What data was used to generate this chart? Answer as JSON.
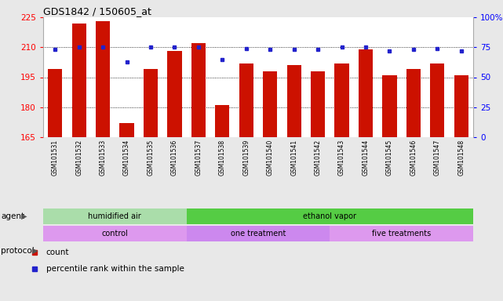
{
  "title": "GDS1842 / 150605_at",
  "samples": [
    "GSM101531",
    "GSM101532",
    "GSM101533",
    "GSM101534",
    "GSM101535",
    "GSM101536",
    "GSM101537",
    "GSM101538",
    "GSM101539",
    "GSM101540",
    "GSM101541",
    "GSM101542",
    "GSM101543",
    "GSM101544",
    "GSM101545",
    "GSM101546",
    "GSM101547",
    "GSM101548"
  ],
  "bar_values": [
    199,
    222,
    223,
    172,
    199,
    208,
    212,
    181,
    202,
    198,
    201,
    198,
    202,
    209,
    196,
    199,
    202,
    196
  ],
  "dot_values": [
    73,
    75,
    75,
    63,
    75,
    75,
    75,
    65,
    74,
    73,
    73,
    73,
    75,
    75,
    72,
    73,
    74,
    72
  ],
  "ylim_left": [
    165,
    225
  ],
  "ylim_right": [
    0,
    100
  ],
  "yticks_left": [
    165,
    180,
    195,
    210,
    225
  ],
  "yticks_right": [
    0,
    25,
    50,
    75,
    100
  ],
  "bar_color": "#CC1100",
  "dot_color": "#2222CC",
  "background_color": "#e8e8e8",
  "plot_bg_color": "#ffffff",
  "agent_labels": [
    {
      "text": "humidified air",
      "start": 0,
      "end": 5,
      "color": "#aaddaa"
    },
    {
      "text": "ethanol vapor",
      "start": 6,
      "end": 17,
      "color": "#55cc44"
    }
  ],
  "protocol_labels": [
    {
      "text": "control",
      "start": 0,
      "end": 5,
      "color": "#dd99ee"
    },
    {
      "text": "one treatment",
      "start": 6,
      "end": 11,
      "color": "#cc88ee"
    },
    {
      "text": "five treatments",
      "start": 12,
      "end": 17,
      "color": "#dd99ee"
    }
  ],
  "legend_items": [
    {
      "label": "count",
      "color": "#CC1100"
    },
    {
      "label": "percentile rank within the sample",
      "color": "#2222CC"
    }
  ],
  "grid_vals": [
    180,
    195,
    210
  ],
  "agent_row_label": "agent",
  "protocol_row_label": "protocol"
}
